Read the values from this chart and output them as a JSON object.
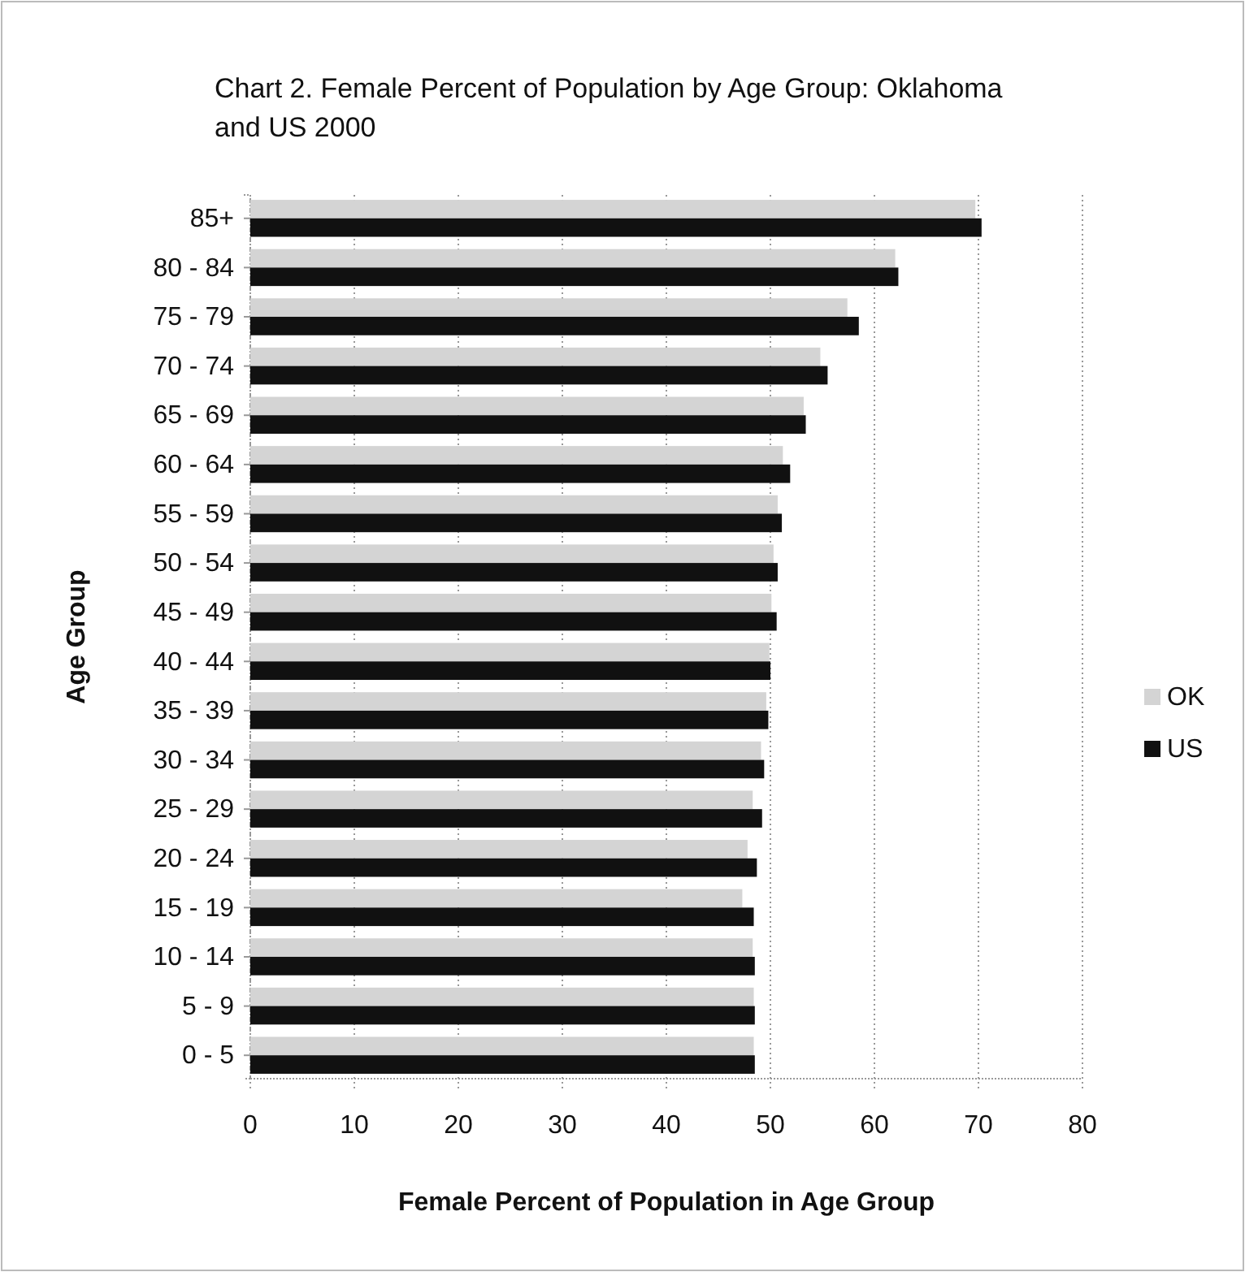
{
  "chart_data": {
    "type": "bar",
    "orientation": "horizontal",
    "title": "Chart 2.  Female Percent of Population by Age Group: Oklahoma and US 2000",
    "xlabel": "Female Percent of Population in Age Group",
    "ylabel": "Age Group",
    "categories": [
      "85+",
      "80 - 84",
      "75 - 79",
      "70 - 74",
      "65 - 69",
      "60 - 64",
      "55 - 59",
      "50 - 54",
      "45 - 49",
      "40 - 44",
      "35 - 39",
      "30 - 34",
      "25 - 29",
      "20 - 24",
      "15 - 19",
      "10 - 14",
      "5 - 9",
      "0 - 5"
    ],
    "series": [
      {
        "name": "OK",
        "color": "#d4d4d4",
        "values": [
          69.7,
          62.0,
          57.4,
          54.8,
          53.2,
          51.2,
          50.7,
          50.3,
          50.1,
          49.9,
          49.6,
          49.1,
          48.3,
          47.8,
          47.3,
          48.3,
          48.4,
          48.4
        ]
      },
      {
        "name": "US",
        "color": "#111111",
        "values": [
          70.3,
          62.3,
          58.5,
          55.5,
          53.4,
          51.9,
          51.1,
          50.7,
          50.6,
          50.0,
          49.8,
          49.4,
          49.2,
          48.7,
          48.4,
          48.5,
          48.5,
          48.5
        ]
      }
    ],
    "xlim": [
      0,
      80
    ],
    "xticks": [
      0,
      10,
      20,
      30,
      40,
      50,
      60,
      70,
      80
    ],
    "grid": "x",
    "legend": "right"
  }
}
